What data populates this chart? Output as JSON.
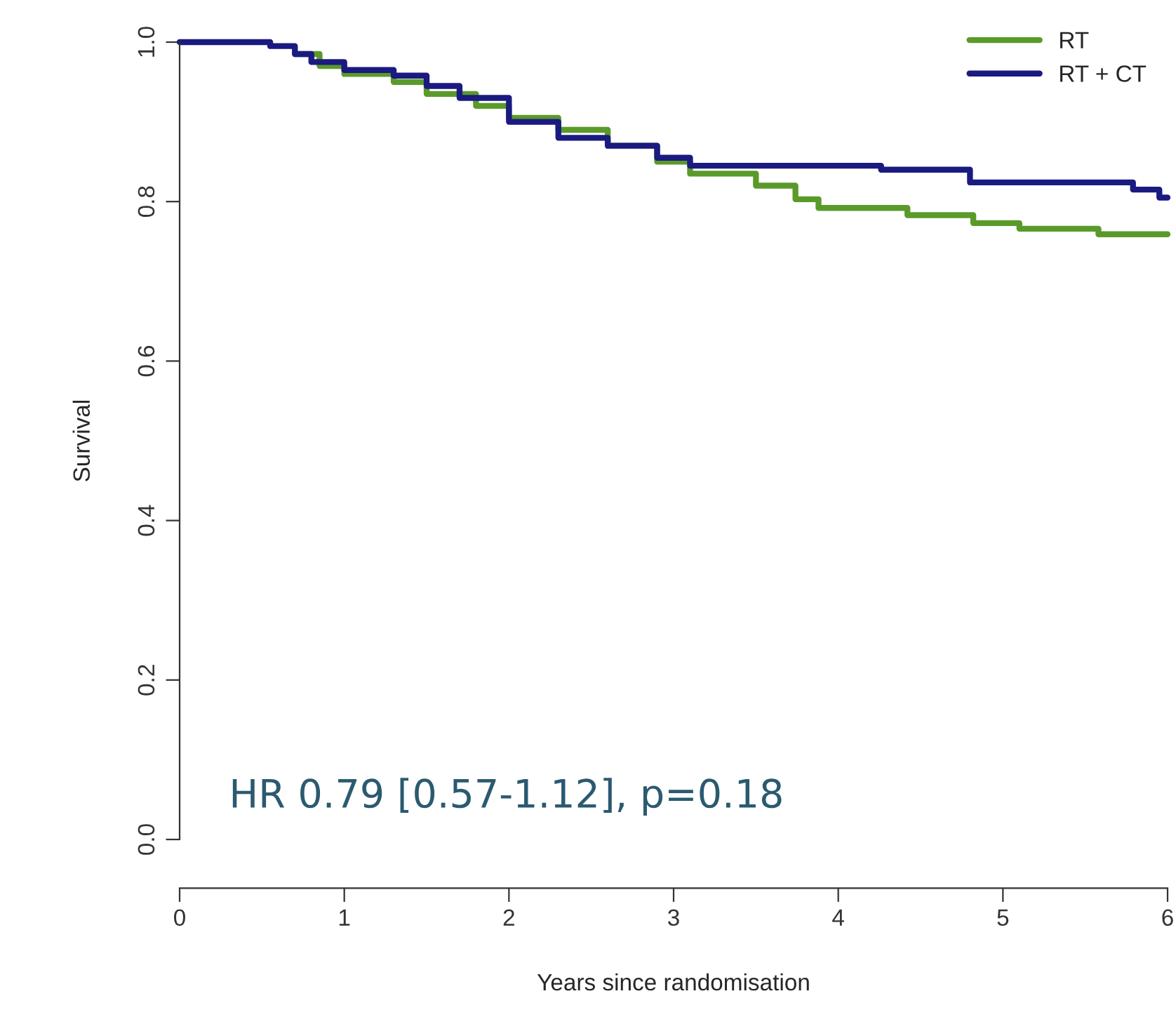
{
  "chart_data": {
    "type": "step",
    "xlabel": "Years since randomisation",
    "ylabel": "Survival",
    "xlim": [
      0,
      6
    ],
    "xticks": [
      0,
      1,
      2,
      3,
      4,
      5,
      6
    ],
    "ylim": [
      0,
      1
    ],
    "yticks": [
      {
        "value": 0,
        "label": "0.0"
      },
      {
        "value": 0.2,
        "label": "0.2"
      },
      {
        "value": 0.4,
        "label": "0.4"
      },
      {
        "value": 0.6,
        "label": "0.6"
      },
      {
        "value": 0.8,
        "label": "0.8"
      },
      {
        "value": 1,
        "label": "1.0"
      }
    ],
    "grid": false,
    "legend": "top right",
    "annotations": [
      "HR 0.79 [0.57-1.12], p=0.18"
    ],
    "series": [
      {
        "name": "RT",
        "color": "#5a9a2a",
        "x": [
          0.7,
          0.85,
          1.0,
          1.3,
          1.5,
          1.8,
          2.0,
          2.3,
          2.6,
          2.9,
          3.1,
          3.5,
          3.74,
          3.88,
          4.42,
          4.82,
          5.1,
          5.58,
          6
        ],
        "values": [
          0.985,
          0.97,
          0.96,
          0.95,
          0.935,
          0.92,
          0.905,
          0.89,
          0.87,
          0.85,
          0.835,
          0.82,
          0.803,
          0.792,
          0.783,
          0.773,
          0.766,
          0.759,
          0.759
        ]
      },
      {
        "name": "RT + CT",
        "color": "#1a1a80",
        "x": [
          0,
          0.55,
          0.7,
          0.8,
          1.0,
          1.3,
          1.5,
          1.7,
          2.0,
          2.3,
          2.6,
          2.9,
          3.1,
          4.26,
          4.8,
          5.79,
          5.95,
          6
        ],
        "values": [
          1.0,
          0.995,
          0.985,
          0.975,
          0.965,
          0.958,
          0.945,
          0.93,
          0.9,
          0.88,
          0.87,
          0.855,
          0.845,
          0.84,
          0.824,
          0.815,
          0.805,
          0.805
        ]
      }
    ]
  }
}
